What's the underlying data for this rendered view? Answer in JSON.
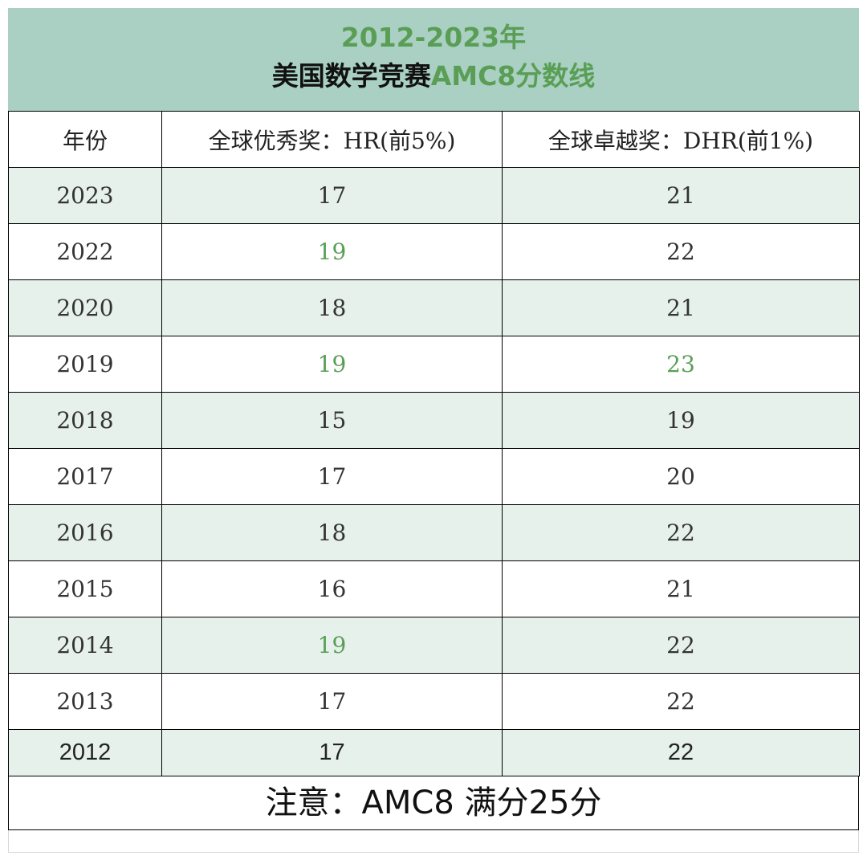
{
  "title": {
    "line1": "2012-2023年",
    "line2_dark": "美国数学竞赛",
    "line2_green": "AMC8分数线"
  },
  "table": {
    "headers": [
      "年份",
      "全球优秀奖：HR(前5%)",
      "全球卓越奖：DHR(前1%)"
    ],
    "rows": [
      {
        "year": "2023",
        "hr": "17",
        "dhr": "21"
      },
      {
        "year": "2022",
        "hr": "19",
        "dhr": "22"
      },
      {
        "year": "2020",
        "hr": "18",
        "dhr": "21"
      },
      {
        "year": "2019",
        "hr": "19",
        "dhr": "23"
      },
      {
        "year": "2018",
        "hr": "15",
        "dhr": "19"
      },
      {
        "year": "2017",
        "hr": "17",
        "dhr": "20"
      },
      {
        "year": "2016",
        "hr": "18",
        "dhr": "22"
      },
      {
        "year": "2015",
        "hr": "16",
        "dhr": "21"
      },
      {
        "year": "2014",
        "hr": "19",
        "dhr": "22"
      },
      {
        "year": "2013",
        "hr": "17",
        "dhr": "22"
      },
      {
        "year": "2012",
        "hr": "17",
        "dhr": "22"
      }
    ]
  },
  "note": "注意：AMC8 满分25分",
  "colors": {
    "header_bg": "#a9d0c3",
    "accent_green": "#5a9e56",
    "row_shade": "#e6f1ec"
  }
}
